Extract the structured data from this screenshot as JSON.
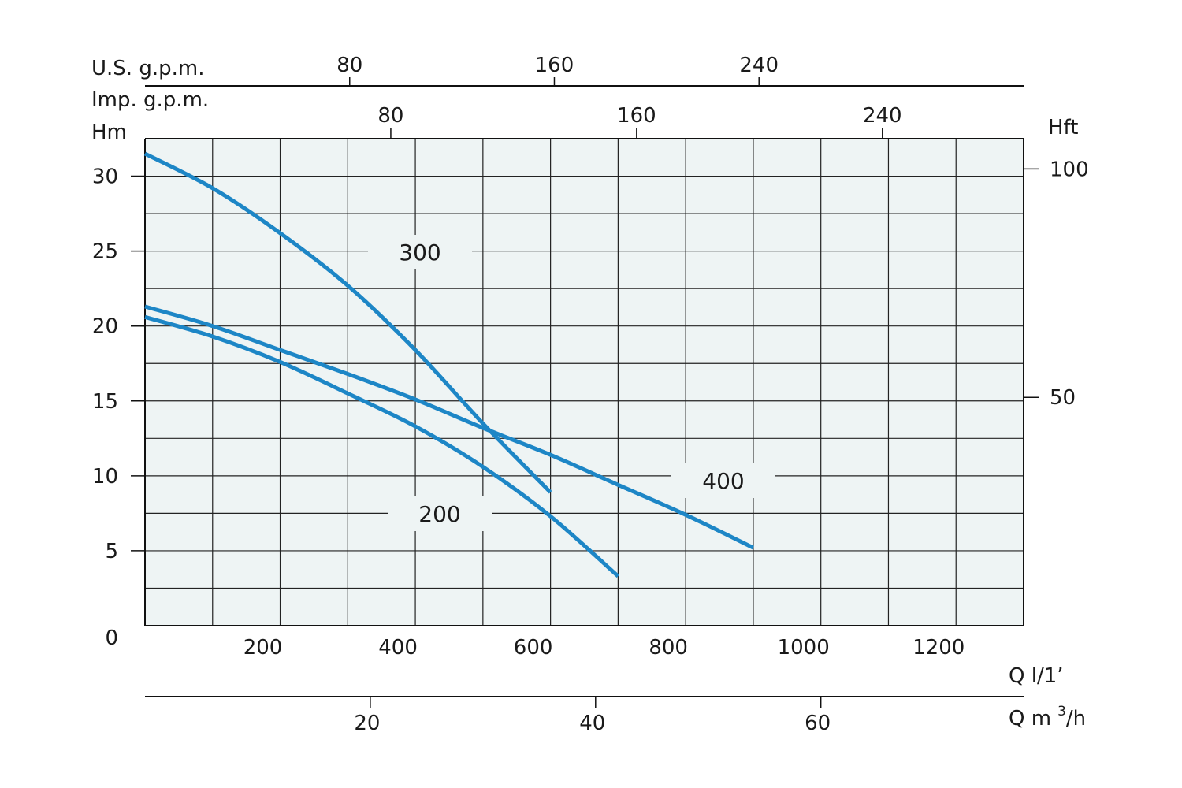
{
  "chart_data": {
    "type": "line",
    "title": "",
    "axes": {
      "left": {
        "label": "Hm",
        "unit": "m",
        "range": [
          0,
          32.5
        ],
        "ticks": [
          0,
          5,
          10,
          15,
          20,
          25,
          30
        ]
      },
      "right": {
        "label": "Hft",
        "unit": "ft",
        "ticks": [
          50,
          100
        ]
      },
      "bottom_primary": {
        "label": "Q l/1’",
        "unit": "l/min",
        "range": [
          0,
          1300
        ],
        "ticks": [
          200,
          400,
          600,
          800,
          1000,
          1200
        ]
      },
      "bottom_secondary": {
        "label_main": "Q m",
        "label_sup": "3",
        "label_tail": "/h",
        "ticks": [
          20,
          40,
          60
        ]
      },
      "top_us": {
        "label": "U.S. g.p.m.",
        "ticks": [
          80,
          160,
          240
        ]
      },
      "top_imp": {
        "label": "Imp. g.p.m.",
        "ticks": [
          80,
          160,
          240
        ]
      }
    },
    "grid": true,
    "background": "#eef4f4",
    "line_color": "#1d86c6",
    "series": [
      {
        "name": "300",
        "x": [
          0,
          100,
          200,
          300,
          400,
          500,
          600
        ],
        "y": [
          31.5,
          29.2,
          26.2,
          22.7,
          18.4,
          13.5,
          8.9
        ]
      },
      {
        "name": "400",
        "x": [
          0,
          100,
          200,
          300,
          400,
          500,
          600,
          700,
          800,
          900
        ],
        "y": [
          21.3,
          20.0,
          18.4,
          16.8,
          15.1,
          13.2,
          11.4,
          9.4,
          7.4,
          5.2
        ]
      },
      {
        "name": "200",
        "x": [
          0,
          100,
          200,
          300,
          400,
          500,
          600,
          700
        ],
        "y": [
          20.6,
          19.3,
          17.6,
          15.5,
          13.3,
          10.6,
          7.3,
          3.3
        ]
      }
    ]
  }
}
